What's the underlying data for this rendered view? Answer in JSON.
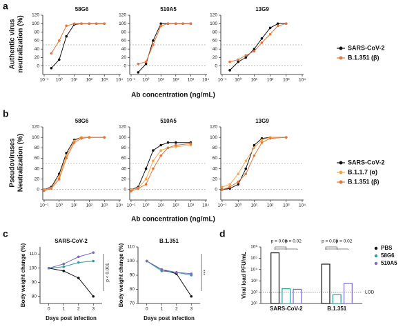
{
  "panel_labels": [
    "a",
    "b",
    "c",
    "d"
  ],
  "rows": [
    {
      "y_label": [
        "Authentic virus",
        "neutralization (%)"
      ],
      "x_label": "Ab concentration (ng/mL)"
    },
    {
      "y_label": [
        "Pseudoviruses",
        "Neutralization (%)"
      ],
      "x_label": "Ab concentration (ng/mL)"
    }
  ],
  "chart_data": [
    {
      "type": "line",
      "title": "58G6",
      "xlog": true,
      "xlim": [
        0.1,
        10000
      ],
      "xticks": [
        {
          "value": 0.1,
          "label": "10⁻¹"
        },
        {
          "value": 1,
          "label": "10⁰"
        },
        {
          "value": 10,
          "label": "10¹"
        },
        {
          "value": 100,
          "label": "10²"
        },
        {
          "value": 1000,
          "label": "10³"
        },
        {
          "value": 10000,
          "label": "10⁴"
        }
      ],
      "ylim": [
        -20,
        120
      ],
      "yticks": [
        0,
        20,
        40,
        60,
        80,
        100,
        120
      ],
      "ref_lines": [
        0,
        50
      ],
      "x": [
        0.3,
        1,
        3,
        10,
        30,
        100,
        300,
        1000
      ],
      "series": [
        {
          "name": "SARS-CoV-2",
          "color": "#111111",
          "values": [
            -5,
            15,
            70,
            98,
            100,
            100,
            100,
            100
          ]
        },
        {
          "name": "B.1.351 (β)",
          "color": "#e8743b",
          "values": [
            30,
            60,
            95,
            100,
            100,
            100,
            100,
            100
          ]
        }
      ]
    },
    {
      "type": "line",
      "title": "510A5",
      "xlog": true,
      "xlim": [
        0.1,
        10000
      ],
      "xticks": [
        {
          "value": 0.1,
          "label": "10⁻¹"
        },
        {
          "value": 1,
          "label": "10⁰"
        },
        {
          "value": 10,
          "label": "10¹"
        },
        {
          "value": 100,
          "label": "10²"
        },
        {
          "value": 1000,
          "label": "10³"
        },
        {
          "value": 10000,
          "label": "10⁴"
        }
      ],
      "ylim": [
        -20,
        120
      ],
      "yticks": [
        0,
        20,
        40,
        60,
        80,
        100,
        120
      ],
      "ref_lines": [
        0,
        50
      ],
      "x": [
        0.3,
        1,
        3,
        10,
        30,
        100,
        300,
        1000
      ],
      "series": [
        {
          "name": "SARS-CoV-2",
          "color": "#111111",
          "values": [
            -15,
            5,
            60,
            100,
            100,
            100,
            100,
            100
          ]
        },
        {
          "name": "B.1.351 (β)",
          "color": "#e8743b",
          "values": [
            5,
            10,
            50,
            95,
            100,
            100,
            100,
            100
          ]
        }
      ]
    },
    {
      "type": "line",
      "title": "13G9",
      "xlog": true,
      "xlim": [
        0.1,
        10000
      ],
      "xticks": [
        {
          "value": 0.1,
          "label": "10⁻¹"
        },
        {
          "value": 1,
          "label": "10⁰"
        },
        {
          "value": 10,
          "label": "10¹"
        },
        {
          "value": 100,
          "label": "10²"
        },
        {
          "value": 1000,
          "label": "10³"
        },
        {
          "value": 10000,
          "label": "10⁴"
        }
      ],
      "ylim": [
        -20,
        120
      ],
      "yticks": [
        0,
        20,
        40,
        60,
        80,
        100,
        120
      ],
      "ref_lines": [
        0,
        50
      ],
      "x": [
        0.3,
        1,
        3,
        10,
        30,
        100,
        300,
        1000
      ],
      "series": [
        {
          "name": "SARS-CoV-2",
          "color": "#111111",
          "values": [
            -10,
            10,
            20,
            40,
            65,
            90,
            100,
            100
          ]
        },
        {
          "name": "B.1.351 (β)",
          "color": "#e8743b",
          "values": [
            10,
            15,
            25,
            35,
            55,
            75,
            95,
            100
          ]
        }
      ]
    },
    {
      "type": "line",
      "title": "58G6",
      "xlog": true,
      "xlim": [
        0.1,
        10000
      ],
      "xticks": [
        {
          "value": 0.1,
          "label": "10⁻¹"
        },
        {
          "value": 1,
          "label": "10⁰"
        },
        {
          "value": 10,
          "label": "10¹"
        },
        {
          "value": 100,
          "label": "10²"
        },
        {
          "value": 1000,
          "label": "10³"
        },
        {
          "value": 10000,
          "label": "10⁴"
        }
      ],
      "ylim": [
        -20,
        120
      ],
      "yticks": [
        0,
        20,
        40,
        60,
        80,
        100,
        120
      ],
      "ref_lines": [
        0,
        50
      ],
      "x": [
        0.1,
        0.3,
        1,
        3,
        10,
        30,
        100,
        1000
      ],
      "series": [
        {
          "name": "SARS-CoV-2",
          "color": "#111111",
          "values": [
            0,
            5,
            30,
            70,
            95,
            100,
            100,
            100
          ]
        },
        {
          "name": "B.1.1.7 (α)",
          "color": "#f3a847",
          "values": [
            0,
            3,
            25,
            65,
            93,
            100,
            100,
            100
          ]
        },
        {
          "name": "B.1.351 (β)",
          "color": "#e8743b",
          "values": [
            -2,
            2,
            20,
            60,
            90,
            98,
            100,
            100
          ]
        }
      ]
    },
    {
      "type": "line",
      "title": "510A5",
      "xlog": true,
      "xlim": [
        0.1,
        10000
      ],
      "xticks": [
        {
          "value": 0.1,
          "label": "10⁻¹"
        },
        {
          "value": 1,
          "label": "10⁰"
        },
        {
          "value": 10,
          "label": "10¹"
        },
        {
          "value": 100,
          "label": "10²"
        },
        {
          "value": 1000,
          "label": "10³"
        },
        {
          "value": 10000,
          "label": "10⁴"
        }
      ],
      "ylim": [
        -20,
        120
      ],
      "yticks": [
        0,
        20,
        40,
        60,
        80,
        100,
        120
      ],
      "ref_lines": [
        0,
        50
      ],
      "x": [
        0.1,
        0.3,
        1,
        3,
        10,
        30,
        100,
        1000
      ],
      "series": [
        {
          "name": "SARS-CoV-2",
          "color": "#111111",
          "values": [
            0,
            5,
            40,
            75,
            85,
            90,
            90,
            90
          ]
        },
        {
          "name": "B.1.1.7 (α)",
          "color": "#f3a847",
          "values": [
            0,
            3,
            20,
            55,
            75,
            80,
            82,
            85
          ]
        },
        {
          "name": "B.1.351 (β)",
          "color": "#e8743b",
          "values": [
            -3,
            2,
            10,
            40,
            65,
            80,
            85,
            88
          ]
        }
      ]
    },
    {
      "type": "line",
      "title": "13G9",
      "xlog": true,
      "xlim": [
        0.1,
        10000
      ],
      "xticks": [
        {
          "value": 0.1,
          "label": "10⁻¹"
        },
        {
          "value": 1,
          "label": "10⁰"
        },
        {
          "value": 10,
          "label": "10¹"
        },
        {
          "value": 100,
          "label": "10²"
        },
        {
          "value": 1000,
          "label": "10³"
        },
        {
          "value": 10000,
          "label": "10⁴"
        }
      ],
      "ylim": [
        -20,
        120
      ],
      "yticks": [
        0,
        20,
        40,
        60,
        80,
        100,
        120
      ],
      "ref_lines": [
        0,
        50
      ],
      "x": [
        0.1,
        0.3,
        1,
        3,
        10,
        30,
        100,
        1000
      ],
      "series": [
        {
          "name": "SARS-CoV-2",
          "color": "#111111",
          "values": [
            0,
            2,
            10,
            40,
            85,
            98,
            100,
            100
          ]
        },
        {
          "name": "B.1.1.7 (α)",
          "color": "#f3a847",
          "values": [
            5,
            10,
            30,
            55,
            80,
            95,
            100,
            100
          ]
        },
        {
          "name": "B.1.351 (β)",
          "color": "#e8743b",
          "values": [
            0,
            5,
            15,
            30,
            65,
            90,
            98,
            100
          ]
        }
      ]
    },
    {
      "type": "line",
      "title": "SARS-CoV-2",
      "y_label": "Body weight change (%)",
      "x_label": "Days post infection",
      "xlim": [
        -0.5,
        3.5
      ],
      "xticks": [
        0,
        1,
        2,
        3
      ],
      "ylim": [
        75,
        115
      ],
      "yticks": [
        80,
        90,
        100,
        110
      ],
      "x": [
        0,
        1,
        2,
        3
      ],
      "annotations": [
        "p < 0.001"
      ],
      "series": [
        {
          "name": "PBS",
          "color": "#111111",
          "values": [
            100,
            98,
            93,
            80
          ]
        },
        {
          "name": "58G6",
          "color": "#2a9d9b",
          "values": [
            100,
            101,
            104,
            105
          ]
        },
        {
          "name": "510A5",
          "color": "#7b68c9",
          "values": [
            100,
            103,
            108,
            111
          ]
        }
      ]
    },
    {
      "type": "line",
      "title": "B.1.351",
      "y_label": "Body weight change (%)",
      "x_label": "Days post infection",
      "xlim": [
        -0.5,
        3.5
      ],
      "xticks": [
        0,
        1,
        2,
        3
      ],
      "ylim": [
        70,
        110
      ],
      "yticks": [
        70,
        80,
        90,
        100,
        110
      ],
      "x": [
        0,
        1,
        2,
        3
      ],
      "annotations": [
        "***"
      ],
      "series": [
        {
          "name": "PBS",
          "color": "#111111",
          "values": [
            100,
            94,
            91,
            75
          ]
        },
        {
          "name": "58G6",
          "color": "#2a9d9b",
          "values": [
            100,
            93,
            92,
            90
          ]
        },
        {
          "name": "510A5",
          "color": "#7b68c9",
          "values": [
            100,
            94,
            92,
            91
          ]
        }
      ]
    },
    {
      "type": "bar",
      "ylog": true,
      "y_label": "Viral load PFU/mL",
      "ylim": [
        10,
        1000000
      ],
      "yticks": [
        {
          "value": 10,
          "label": "10¹"
        },
        {
          "value": 100,
          "label": "10²"
        },
        {
          "value": 1000,
          "label": "10³"
        },
        {
          "value": 10000,
          "label": "10⁴"
        },
        {
          "value": 100000,
          "label": "10⁵"
        },
        {
          "value": 1000000,
          "label": "10⁶"
        }
      ],
      "ref_line": {
        "value": 100,
        "label": "LOD"
      },
      "categories": [
        "SARS-CoV-2",
        "B.1.351"
      ],
      "annotations": [
        "p = 0.08",
        "p = 0.02",
        "p = 0.03",
        "p = 0.02"
      ],
      "series": [
        {
          "name": "PBS",
          "color": "#111111",
          "values": [
            300000,
            30000
          ]
        },
        {
          "name": "58G6",
          "color": "#2a9d9b",
          "values": [
            200,
            60
          ]
        },
        {
          "name": "510A5",
          "color": "#7b68c9",
          "values": [
            180,
            600
          ]
        }
      ]
    }
  ]
}
